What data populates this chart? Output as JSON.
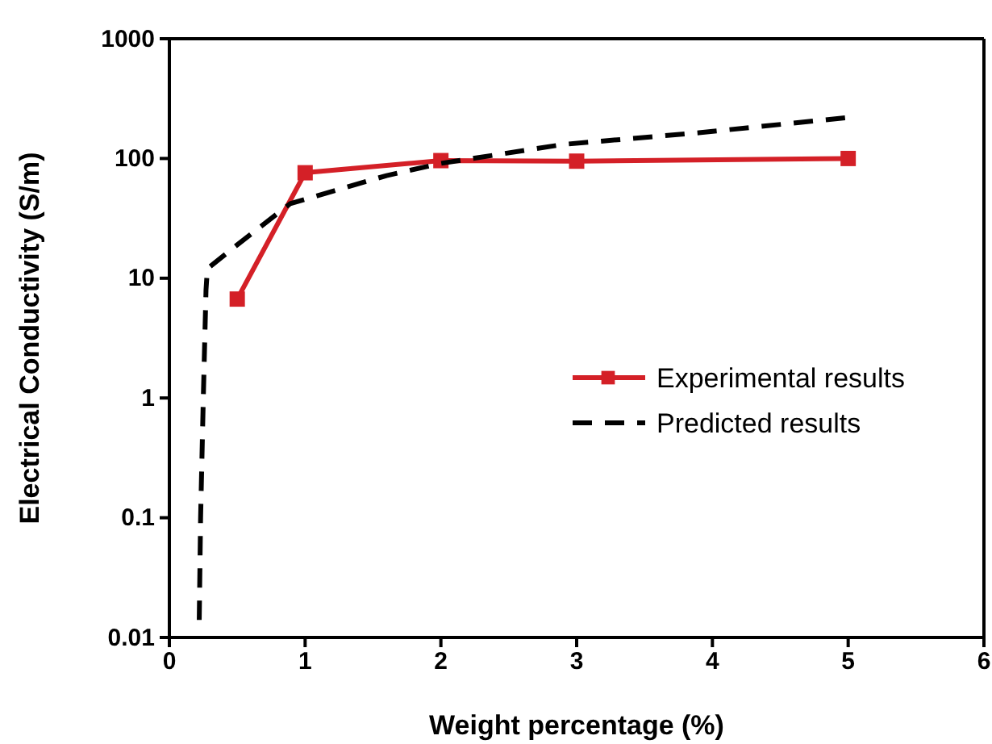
{
  "chart_data": {
    "type": "line",
    "xlabel": "Weight percentage (%)",
    "ylabel": "Electrical Conductivity (S/m)",
    "log": "y",
    "xlim": [
      0,
      6
    ],
    "xticks": [
      0,
      1,
      2,
      3,
      4,
      5,
      6
    ],
    "ylim": [
      0.01,
      1000
    ],
    "yticks": [
      0.01,
      0.1,
      1,
      10,
      100,
      1000
    ],
    "legend": "right",
    "grid": false,
    "series": [
      {
        "name": "Experimental results",
        "color": "#d42027",
        "marker": "square",
        "line_style": "solid",
        "x": [
          0.5,
          1,
          2,
          3,
          5
        ],
        "values": [
          6.7,
          76,
          96,
          95,
          100
        ]
      },
      {
        "name": "Predicted results",
        "color": "#000000",
        "marker": "none",
        "line_style": "dashed",
        "x": [
          0.22,
          0.23,
          0.25,
          0.27,
          0.28,
          0.5,
          0.89,
          1.6,
          2,
          2.9,
          3.9,
          5
        ],
        "values": [
          0.014,
          0.1,
          1,
          8,
          12,
          19,
          42,
          72,
          91,
          131,
          164,
          220
        ]
      }
    ]
  }
}
